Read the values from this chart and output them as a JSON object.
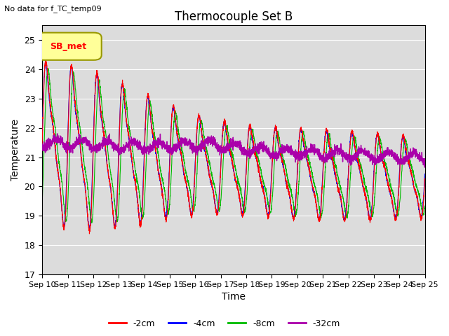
{
  "title": "Thermocouple Set B",
  "subtitle": "No data for f_TC_temp09",
  "xlabel": "Time",
  "ylabel": "Temperature",
  "ylim": [
    17.0,
    25.5
  ],
  "yticks": [
    17.0,
    18.0,
    19.0,
    20.0,
    21.0,
    22.0,
    23.0,
    24.0,
    25.0
  ],
  "xtick_labels": [
    "Sep 10",
    "Sep 11",
    "Sep 12",
    "Sep 13",
    "Sep 14",
    "Sep 15",
    "Sep 16",
    "Sep 17",
    "Sep 18",
    "Sep 19",
    "Sep 20",
    "Sep 21",
    "Sep 22",
    "Sep 23",
    "Sep 24",
    "Sep 25"
  ],
  "colors": {
    "-2cm": "#FF0000",
    "-4cm": "#0000FF",
    "-8cm": "#00BB00",
    "-32cm": "#AA00AA"
  },
  "legend_label": "SB_met",
  "legend_box_facecolor": "#FFFF99",
  "legend_box_edgecolor": "#999900",
  "plot_bg_color": "#DCDCDC"
}
